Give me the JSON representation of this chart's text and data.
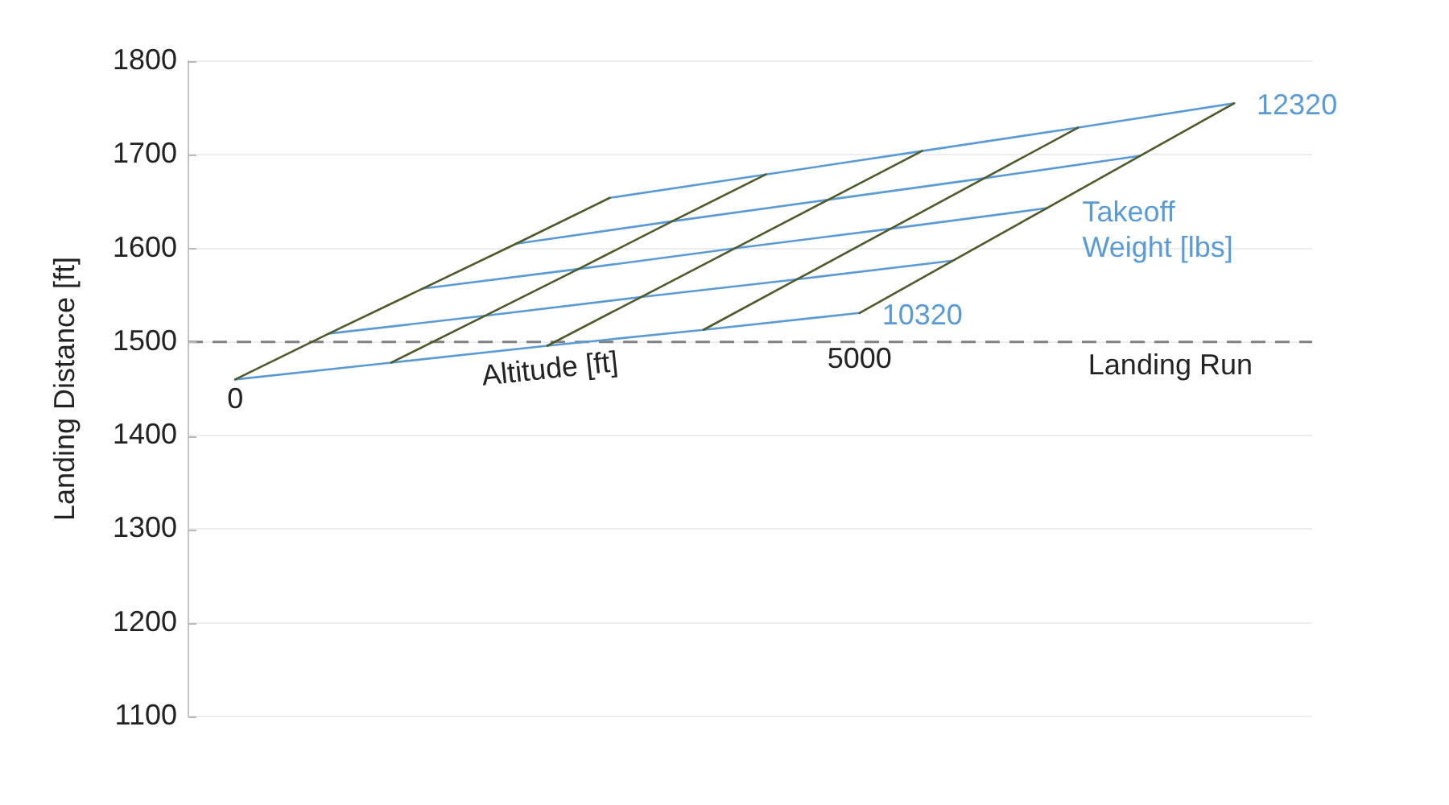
{
  "chart_data": {
    "type": "line",
    "ylabel": "Landing Distance [ft]",
    "categories": [
      null,
      null,
      null,
      null,
      null,
      null,
      null,
      null,
      null,
      null,
      null,
      null,
      null,
      null,
      null,
      null,
      null,
      null,
      null,
      null,
      null,
      null,
      null,
      null,
      null,
      null,
      null,
      null,
      null,
      null,
      null,
      null,
      null,
      null,
      null,
      null
    ],
    "series": [
      {
        "name": "0",
        "color": "#4e5a2a",
        "values": [
          null,
          1460,
          null,
          null,
          1509,
          null,
          null,
          1557,
          null,
          null,
          1605,
          null,
          null,
          1654,
          null,
          null,
          null,
          null,
          null,
          null,
          null,
          null,
          null,
          null,
          null,
          null,
          null,
          null,
          null,
          null,
          null,
          null,
          null,
          null,
          null,
          null
        ]
      },
      {
        "color": "#4e5a2a",
        "values": [
          null,
          null,
          null,
          null,
          null,
          null,
          1478,
          null,
          null,
          1528,
          null,
          null,
          1578,
          null,
          null,
          1629,
          null,
          null,
          1679,
          null,
          null,
          null,
          null,
          null,
          null,
          null,
          null,
          null,
          null,
          null,
          null,
          null,
          null,
          null,
          null,
          null
        ]
      },
      {
        "color": "#4e5a2a",
        "values": [
          null,
          null,
          null,
          null,
          null,
          null,
          null,
          null,
          null,
          null,
          null,
          1496,
          null,
          null,
          1548,
          null,
          null,
          1600,
          null,
          null,
          1652,
          null,
          null,
          1704,
          null,
          null,
          null,
          null,
          null,
          null,
          null,
          null,
          null,
          null,
          null,
          null
        ]
      },
      {
        "color": "#4e5a2a",
        "values": [
          null,
          null,
          null,
          null,
          null,
          null,
          null,
          null,
          null,
          null,
          null,
          null,
          null,
          null,
          null,
          null,
          1513,
          null,
          null,
          1567,
          null,
          null,
          1621,
          null,
          null,
          1675,
          null,
          null,
          1729,
          null,
          null,
          null,
          null,
          null,
          null,
          null
        ]
      },
      {
        "name": "5000",
        "color": "#4e5a2a",
        "values": [
          null,
          null,
          null,
          null,
          null,
          null,
          null,
          null,
          null,
          null,
          null,
          null,
          null,
          null,
          null,
          null,
          null,
          null,
          null,
          null,
          null,
          1531,
          null,
          null,
          1587,
          null,
          null,
          1643,
          null,
          null,
          1699,
          null,
          null,
          1755,
          null,
          null
        ]
      },
      {
        "name": "10320",
        "color": "#5b9bd5",
        "values": [
          null,
          1460,
          null,
          null,
          null,
          null,
          1478,
          null,
          null,
          null,
          null,
          1496,
          null,
          null,
          null,
          null,
          1513,
          null,
          null,
          null,
          null,
          1531,
          null,
          null,
          null,
          null,
          null,
          null,
          null,
          null,
          null,
          null,
          null,
          null,
          null,
          null
        ]
      },
      {
        "color": "#5b9bd5",
        "values": [
          null,
          null,
          null,
          null,
          1509,
          null,
          null,
          null,
          null,
          1528,
          null,
          null,
          null,
          null,
          1548,
          null,
          null,
          null,
          null,
          1567,
          null,
          null,
          null,
          null,
          1587,
          null,
          null,
          null,
          null,
          null,
          null,
          null,
          null,
          null,
          null,
          null
        ]
      },
      {
        "color": "#5b9bd5",
        "values": [
          null,
          null,
          null,
          null,
          null,
          null,
          null,
          1557,
          null,
          null,
          null,
          null,
          1578,
          null,
          null,
          null,
          null,
          1600,
          null,
          null,
          null,
          null,
          1621,
          null,
          null,
          null,
          null,
          1643,
          null,
          null,
          null,
          null,
          null,
          null,
          null,
          null
        ]
      },
      {
        "color": "#5b9bd5",
        "values": [
          null,
          null,
          null,
          null,
          null,
          null,
          null,
          null,
          null,
          null,
          1605,
          null,
          null,
          null,
          null,
          1629,
          null,
          null,
          null,
          null,
          1652,
          null,
          null,
          null,
          null,
          1675,
          null,
          null,
          null,
          null,
          1699,
          null,
          null,
          null,
          null,
          null
        ]
      },
      {
        "name": "12320",
        "color": "#5b9bd5",
        "values": [
          null,
          null,
          null,
          null,
          null,
          null,
          null,
          null,
          null,
          null,
          null,
          null,
          null,
          1654,
          null,
          null,
          null,
          null,
          1679,
          null,
          null,
          null,
          null,
          1704,
          null,
          null,
          null,
          null,
          1729,
          null,
          null,
          null,
          null,
          1755,
          null,
          null
        ]
      }
    ],
    "ylim": [
      1100,
      1800
    ],
    "yticks": [
      1100,
      1200,
      1300,
      1400,
      1500,
      1600,
      1700,
      1800
    ],
    "grid": "y",
    "tick_labels": "y",
    "ref_lines": [
      {
        "axis": "y",
        "value": 1500,
        "label": "Landing Run",
        "color": "#808080",
        "line_style": "dashed"
      }
    ],
    "annotations": [
      "Altitude [ft]",
      "Takeoff Weight [lbs]"
    ]
  }
}
